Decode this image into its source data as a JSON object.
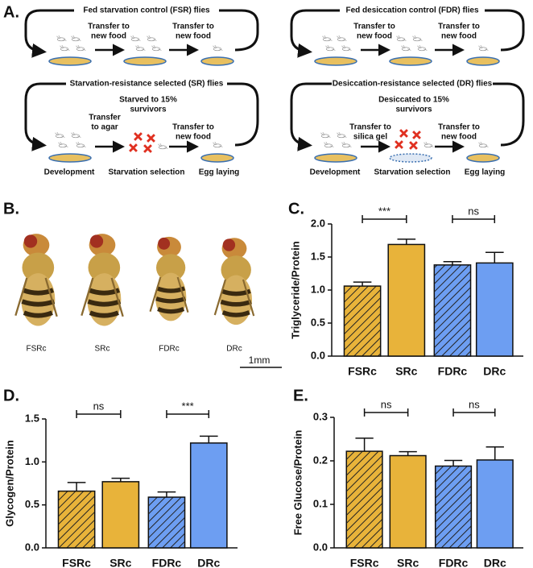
{
  "diagram": {
    "panel_label": "A.",
    "cycles": [
      {
        "title": "Fed starvation control (FSR) flies",
        "steps": [
          {
            "lines": [
              "Transfer to",
              "new food"
            ]
          },
          {
            "lines": [
              "Transfer to",
              "new food"
            ]
          }
        ]
      },
      {
        "title": "Fed desiccation control (FDR) flies",
        "steps": [
          {
            "lines": [
              "Transfer to",
              "new food"
            ]
          },
          {
            "lines": [
              "Transfer to",
              "new food"
            ]
          }
        ]
      },
      {
        "title": "Starvation-resistance selected (SR) flies",
        "steps": [
          {
            "lines": [
              "Transfer",
              "to agar"
            ]
          },
          {
            "lines": [
              "Starved to 15%",
              "survivors"
            ]
          },
          {
            "lines": [
              "Transfer to",
              "new food"
            ]
          }
        ],
        "stages": [
          "Development",
          "Starvation selection",
          "Egg laying"
        ]
      },
      {
        "title": "Desiccation-resistance selected (DR) flies",
        "steps": [
          {
            "lines": [
              "Transfer to",
              "silica gel"
            ]
          },
          {
            "lines": [
              "Desiccated to 15%",
              "survivors"
            ]
          },
          {
            "lines": [
              "Transfer to",
              "new food"
            ]
          }
        ],
        "stages": [
          "Development",
          "Starvation selection",
          "Egg laying"
        ]
      }
    ]
  },
  "photo": {
    "panel_label": "B.",
    "labels": [
      "FSRc",
      "SRc",
      "FDRc",
      "DRc"
    ],
    "scale_bar": "1mm"
  },
  "chart_data": [
    {
      "type": "bar",
      "panel_label": "C.",
      "y_label": "Triglyceride/Protein",
      "categories": [
        "FSRc",
        "SRc",
        "FDRc",
        "DRc"
      ],
      "values": [
        1.06,
        1.69,
        1.38,
        1.41
      ],
      "errors": [
        0.06,
        0.08,
        0.05,
        0.16
      ],
      "colors": [
        "#e8b33a",
        "#e8b33a",
        "#6d9ef2",
        "#6d9ef2"
      ],
      "hatch": [
        true,
        false,
        true,
        false
      ],
      "ylim": [
        0,
        2
      ],
      "yticks": [
        {
          "value": 0,
          "label": "0.0"
        },
        0.5,
        {
          "value": 1,
          "label": "1.0"
        },
        1.5,
        {
          "value": 2,
          "label": "2.0"
        }
      ],
      "annotations": [
        {
          "label": "***",
          "from": 0,
          "to": 1
        },
        {
          "label": "ns",
          "from": 2,
          "to": 3
        }
      ]
    },
    {
      "type": "bar",
      "panel_label": "D.",
      "y_label": "Glycogen/Protein",
      "categories": [
        "FSRc",
        "SRc",
        "FDRc",
        "DRc"
      ],
      "values": [
        0.66,
        0.77,
        0.59,
        1.22
      ],
      "errors": [
        0.1,
        0.04,
        0.06,
        0.08
      ],
      "colors": [
        "#e8b33a",
        "#e8b33a",
        "#6d9ef2",
        "#6d9ef2"
      ],
      "hatch": [
        true,
        false,
        true,
        false
      ],
      "ylim": [
        0,
        1.5
      ],
      "yticks": [
        {
          "value": 0,
          "label": "0.0"
        },
        0.5,
        {
          "value": 1,
          "label": "1.0"
        },
        1.5
      ],
      "annotations": [
        {
          "label": "ns",
          "from": 0,
          "to": 1
        },
        {
          "label": "***",
          "from": 2,
          "to": 3
        }
      ]
    },
    {
      "type": "bar",
      "panel_label": "E.",
      "y_label": "Free Glucose/Protein",
      "categories": [
        "FSRc",
        "SRc",
        "FDRc",
        "DRc"
      ],
      "values": [
        0.222,
        0.212,
        0.188,
        0.202
      ],
      "errors": [
        0.03,
        0.009,
        0.013,
        0.03
      ],
      "colors": [
        "#e8b33a",
        "#e8b33a",
        "#6d9ef2",
        "#6d9ef2"
      ],
      "hatch": [
        true,
        false,
        true,
        false
      ],
      "ylim": [
        0,
        0.3
      ],
      "yticks": [
        {
          "value": 0,
          "label": "0.0"
        },
        0.1,
        0.2,
        0.3
      ],
      "annotations": [
        {
          "label": "ns",
          "from": 0,
          "to": 1
        },
        {
          "label": "ns",
          "from": 2,
          "to": 3
        }
      ]
    }
  ]
}
